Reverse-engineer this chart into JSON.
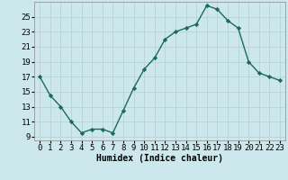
{
  "x": [
    0,
    1,
    2,
    3,
    4,
    5,
    6,
    7,
    8,
    9,
    10,
    11,
    12,
    13,
    14,
    15,
    16,
    17,
    18,
    19,
    20,
    21,
    22,
    23
  ],
  "y": [
    17,
    14.5,
    13,
    11,
    9.5,
    10,
    10,
    9.5,
    12.5,
    15.5,
    18,
    19.5,
    22,
    23,
    23.5,
    24,
    26.5,
    26,
    24.5,
    23.5,
    19,
    17.5,
    17,
    16.5
  ],
  "line_color": "#1a6b5a",
  "marker": "D",
  "marker_size": 2.2,
  "bg_color": "#cde8ec",
  "grid_color_minor": "#b8d8dc",
  "grid_color_major": "#c8a0a8",
  "xlabel": "Humidex (Indice chaleur)",
  "xlim": [
    -0.5,
    23.5
  ],
  "ylim": [
    8.5,
    27
  ],
  "yticks": [
    9,
    11,
    13,
    15,
    17,
    19,
    21,
    23,
    25
  ],
  "xtick_labels": [
    "0",
    "1",
    "2",
    "3",
    "4",
    "5",
    "6",
    "7",
    "8",
    "9",
    "10",
    "11",
    "12",
    "13",
    "14",
    "15",
    "16",
    "17",
    "18",
    "19",
    "20",
    "21",
    "22",
    "23"
  ],
  "xlabel_fontsize": 7,
  "tick_fontsize": 6.5
}
